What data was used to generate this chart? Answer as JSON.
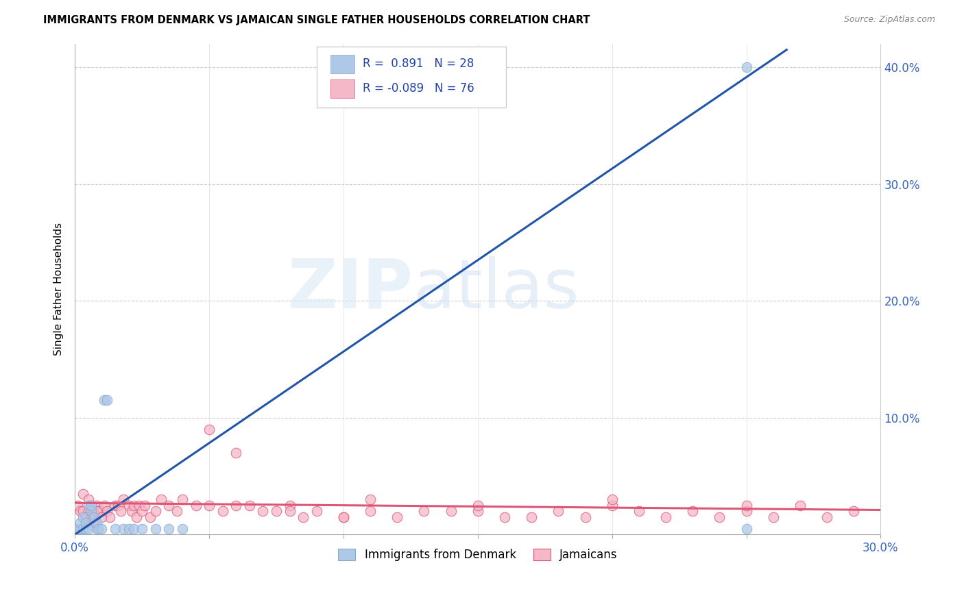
{
  "title": "IMMIGRANTS FROM DENMARK VS JAMAICAN SINGLE FATHER HOUSEHOLDS CORRELATION CHART",
  "source": "Source: ZipAtlas.com",
  "ylabel": "Single Father Households",
  "R1": "0.891",
  "N1": "28",
  "R2": "-0.089",
  "N2": "76",
  "blue_color": "#aec8e8",
  "pink_color": "#f4b8c8",
  "line_blue": "#2255aa",
  "line_pink": "#dd5577",
  "watermark_zip": "ZIP",
  "watermark_atlas": "atlas",
  "legend_label1": "Immigrants from Denmark",
  "legend_label2": "Jamaicans",
  "denmark_x": [
    0.001,
    0.002,
    0.002,
    0.003,
    0.003,
    0.004,
    0.004,
    0.005,
    0.005,
    0.006,
    0.006,
    0.007,
    0.008,
    0.008,
    0.009,
    0.01,
    0.011,
    0.012,
    0.015,
    0.018,
    0.02,
    0.022,
    0.025,
    0.03,
    0.035,
    0.04,
    0.25,
    0.25
  ],
  "denmark_y": [
    0.005,
    0.005,
    0.01,
    0.005,
    0.015,
    0.005,
    0.01,
    0.005,
    0.025,
    0.02,
    0.025,
    0.015,
    0.005,
    0.01,
    0.005,
    0.005,
    0.115,
    0.115,
    0.005,
    0.005,
    0.005,
    0.005,
    0.005,
    0.005,
    0.005,
    0.005,
    0.4,
    0.005
  ],
  "jamaica_x": [
    0.001,
    0.002,
    0.003,
    0.003,
    0.004,
    0.005,
    0.005,
    0.006,
    0.007,
    0.008,
    0.009,
    0.01,
    0.011,
    0.012,
    0.013,
    0.015,
    0.016,
    0.017,
    0.018,
    0.02,
    0.021,
    0.022,
    0.023,
    0.024,
    0.025,
    0.026,
    0.028,
    0.03,
    0.032,
    0.035,
    0.038,
    0.04,
    0.045,
    0.05,
    0.055,
    0.06,
    0.065,
    0.07,
    0.075,
    0.08,
    0.085,
    0.09,
    0.1,
    0.11,
    0.12,
    0.13,
    0.14,
    0.15,
    0.16,
    0.17,
    0.18,
    0.19,
    0.2,
    0.21,
    0.22,
    0.23,
    0.24,
    0.25,
    0.26,
    0.27,
    0.28,
    0.29,
    0.11,
    0.15,
    0.2,
    0.25,
    0.06,
    0.1,
    0.05,
    0.08,
    0.004,
    0.005,
    0.006,
    0.007,
    0.008,
    0.01
  ],
  "jamaica_y": [
    0.025,
    0.02,
    0.02,
    0.035,
    0.015,
    0.02,
    0.03,
    0.025,
    0.02,
    0.025,
    0.02,
    0.02,
    0.025,
    0.02,
    0.015,
    0.025,
    0.025,
    0.02,
    0.03,
    0.025,
    0.02,
    0.025,
    0.015,
    0.025,
    0.02,
    0.025,
    0.015,
    0.02,
    0.03,
    0.025,
    0.02,
    0.03,
    0.025,
    0.09,
    0.02,
    0.07,
    0.025,
    0.02,
    0.02,
    0.025,
    0.015,
    0.02,
    0.015,
    0.02,
    0.015,
    0.02,
    0.02,
    0.02,
    0.015,
    0.015,
    0.02,
    0.015,
    0.025,
    0.02,
    0.015,
    0.02,
    0.015,
    0.02,
    0.015,
    0.025,
    0.015,
    0.02,
    0.03,
    0.025,
    0.03,
    0.025,
    0.025,
    0.015,
    0.025,
    0.02,
    0.015,
    0.01,
    0.015,
    0.01,
    0.02,
    0.015
  ],
  "blue_line_x": [
    0.0,
    0.265
  ],
  "blue_line_y": [
    0.0,
    0.415
  ],
  "pink_line_x": [
    0.0,
    0.3
  ],
  "pink_line_y": [
    0.027,
    0.021
  ],
  "xlim": [
    0.0,
    0.3
  ],
  "ylim": [
    0.0,
    0.42
  ],
  "xtick_positions": [
    0.0,
    0.05,
    0.1,
    0.15,
    0.2,
    0.25,
    0.3
  ],
  "xtick_labels": [
    "0.0%",
    "",
    "",
    "",
    "",
    "",
    "30.0%"
  ],
  "ytick_positions": [
    0.0,
    0.1,
    0.2,
    0.3,
    0.4
  ],
  "ytick_labels": [
    "",
    "10.0%",
    "20.0%",
    "30.0%",
    "40.0%"
  ]
}
